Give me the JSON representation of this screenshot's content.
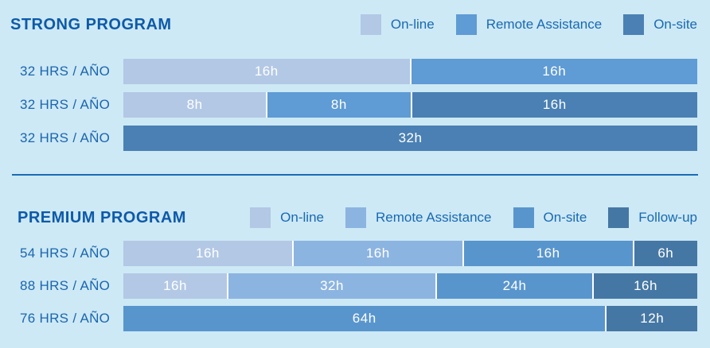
{
  "colors": {
    "background": "#cde9f5",
    "title_text": "#0d5aa9",
    "row_label_text": "#1b65b0",
    "legend_text": "#1969b4",
    "bar_value_text": "#ffffff",
    "divider": "#1a6db4",
    "segment_gap": "#ffffff"
  },
  "programs": [
    {
      "title": "STRONG PROGRAM",
      "legend": [
        {
          "label": "On-line",
          "color": "#b3c8e5"
        },
        {
          "label": "Remote Assistance",
          "color": "#5f9bd4"
        },
        {
          "label": "On-site",
          "color": "#4a80b4"
        }
      ],
      "rows": [
        {
          "label": "32 HRS / AÑO",
          "segments": [
            {
              "value": "16h",
              "hours": 16,
              "series": 0
            },
            {
              "value": "16h",
              "hours": 16,
              "series": 1
            }
          ]
        },
        {
          "label": "32 HRS / AÑO",
          "segments": [
            {
              "value": "8h",
              "hours": 8,
              "series": 0
            },
            {
              "value": "8h",
              "hours": 8,
              "series": 1
            },
            {
              "value": "16h",
              "hours": 16,
              "series": 2
            }
          ]
        },
        {
          "label": "32 HRS / AÑO",
          "segments": [
            {
              "value": "32h",
              "hours": 32,
              "series": 2
            }
          ]
        }
      ]
    },
    {
      "title": "PREMIUM PROGRAM",
      "legend": [
        {
          "label": "On-line",
          "color": "#b3c8e5"
        },
        {
          "label": "Remote Assistance",
          "color": "#8cb4e1"
        },
        {
          "label": "On-site",
          "color": "#5995cd"
        },
        {
          "label": "Follow-up",
          "color": "#4577a4"
        }
      ],
      "rows": [
        {
          "label": "54 HRS / AÑO",
          "segments": [
            {
              "value": "16h",
              "hours": 16,
              "series": 0
            },
            {
              "value": "16h",
              "hours": 16,
              "series": 1
            },
            {
              "value": "16h",
              "hours": 16,
              "series": 2
            },
            {
              "value": "6h",
              "hours": 6,
              "series": 3
            }
          ]
        },
        {
          "label": "88 HRS / AÑO",
          "segments": [
            {
              "value": "16h",
              "hours": 16,
              "series": 0
            },
            {
              "value": "32h",
              "hours": 32,
              "series": 1
            },
            {
              "value": "24h",
              "hours": 24,
              "series": 2
            },
            {
              "value": "16h",
              "hours": 16,
              "series": 3
            }
          ]
        },
        {
          "label": "76 HRS / AÑO",
          "segments": [
            {
              "value": "64h",
              "hours": 64,
              "series": 2
            },
            {
              "value": "12h",
              "hours": 12,
              "series": 3
            }
          ]
        }
      ]
    }
  ],
  "chart_data": [
    {
      "type": "bar",
      "orientation": "horizontal",
      "stacked": true,
      "title": "STRONG PROGRAM",
      "categories": [
        "32 HRS / AÑO",
        "32 HRS / AÑO",
        "32 HRS / AÑO"
      ],
      "series": [
        {
          "name": "On-line",
          "values": [
            16,
            8,
            0
          ],
          "color": "#b3c8e5"
        },
        {
          "name": "Remote Assistance",
          "values": [
            16,
            8,
            0
          ],
          "color": "#5f9bd4"
        },
        {
          "name": "On-site",
          "values": [
            0,
            16,
            32
          ],
          "color": "#4a80b4"
        }
      ],
      "data_label_format": "{value}h",
      "legend_position": "top-right",
      "grid": false,
      "axis_note": "no axis shown; every row bar spans the full track width (each row totals 32 hours)"
    },
    {
      "type": "bar",
      "orientation": "horizontal",
      "stacked": true,
      "title": "PREMIUM PROGRAM",
      "categories": [
        "54 HRS / AÑO",
        "88 HRS / AÑO",
        "76 HRS / AÑO"
      ],
      "series": [
        {
          "name": "On-line",
          "values": [
            16,
            16,
            0
          ],
          "color": "#b3c8e5"
        },
        {
          "name": "Remote Assistance",
          "values": [
            16,
            32,
            0
          ],
          "color": "#8cb4e1"
        },
        {
          "name": "On-site",
          "values": [
            16,
            24,
            64
          ],
          "color": "#5995cd"
        },
        {
          "name": "Follow-up",
          "values": [
            6,
            16,
            12
          ],
          "color": "#4577a4"
        }
      ],
      "data_label_format": "{value}h",
      "legend_position": "top-right",
      "grid": false,
      "axis_note": "no axis shown; each row is normalized to the full track width (row totals 54, 88, 76 hours)"
    }
  ]
}
